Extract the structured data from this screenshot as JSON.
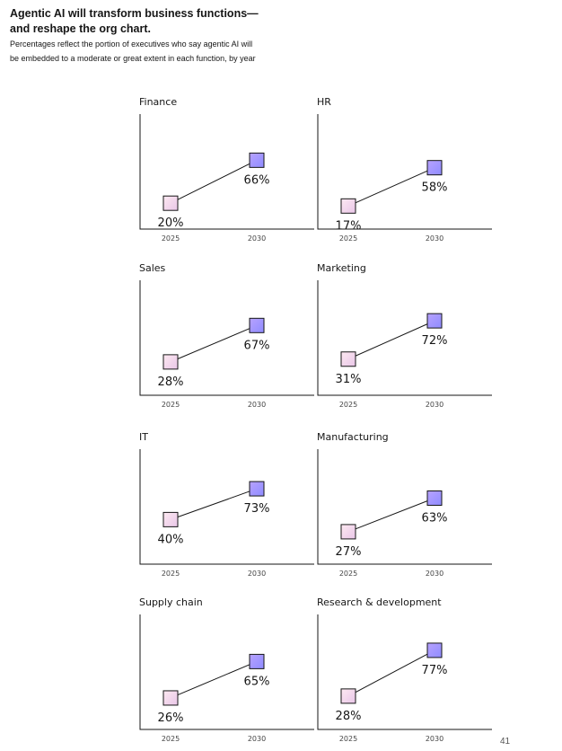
{
  "header": {
    "title_line1": "Agentic AI will transform business functions—",
    "title_line2": "and reshape the org chart.",
    "subtitle": "Percentages reflect the portion of executives who say agentic AI will be embedded to a moderate or great extent in each function, by year"
  },
  "page_number": "41",
  "colors": {
    "start_marker_fill": "#f5cfdf",
    "end_marker_fill": "#9f8cff",
    "line": "#161616"
  },
  "chart_data": [
    {
      "type": "line",
      "title": "Finance",
      "categories": [
        "2025",
        "2030"
      ],
      "values": [
        20,
        66
      ],
      "labels": [
        "20%",
        "66%"
      ],
      "ylim": [
        0,
        100
      ]
    },
    {
      "type": "line",
      "title": "HR",
      "categories": [
        "2025",
        "2030"
      ],
      "values": [
        17,
        58
      ],
      "labels": [
        "17%",
        "58%"
      ],
      "ylim": [
        0,
        100
      ]
    },
    {
      "type": "line",
      "title": "Sales",
      "categories": [
        "2025",
        "2030"
      ],
      "values": [
        28,
        67
      ],
      "labels": [
        "28%",
        "67%"
      ],
      "ylim": [
        0,
        100
      ]
    },
    {
      "type": "line",
      "title": "Marketing",
      "categories": [
        "2025",
        "2030"
      ],
      "values": [
        31,
        72
      ],
      "labels": [
        "31%",
        "72%"
      ],
      "ylim": [
        0,
        100
      ]
    },
    {
      "type": "line",
      "title": "IT",
      "categories": [
        "2025",
        "2030"
      ],
      "values": [
        40,
        73
      ],
      "labels": [
        "40%",
        "73%"
      ],
      "ylim": [
        0,
        100
      ]
    },
    {
      "type": "line",
      "title": "Manufacturing",
      "categories": [
        "2025",
        "2030"
      ],
      "values": [
        27,
        63
      ],
      "labels": [
        "27%",
        "63%"
      ],
      "ylim": [
        0,
        100
      ]
    },
    {
      "type": "line",
      "title": "Supply chain",
      "categories": [
        "2025",
        "2030"
      ],
      "values": [
        26,
        65
      ],
      "labels": [
        "26%",
        "65%"
      ],
      "ylim": [
        0,
        100
      ]
    },
    {
      "type": "line",
      "title": "Research & development",
      "categories": [
        "2025",
        "2030"
      ],
      "values": [
        28,
        77
      ],
      "labels": [
        "28%",
        "77%"
      ],
      "ylim": [
        0,
        100
      ]
    }
  ]
}
